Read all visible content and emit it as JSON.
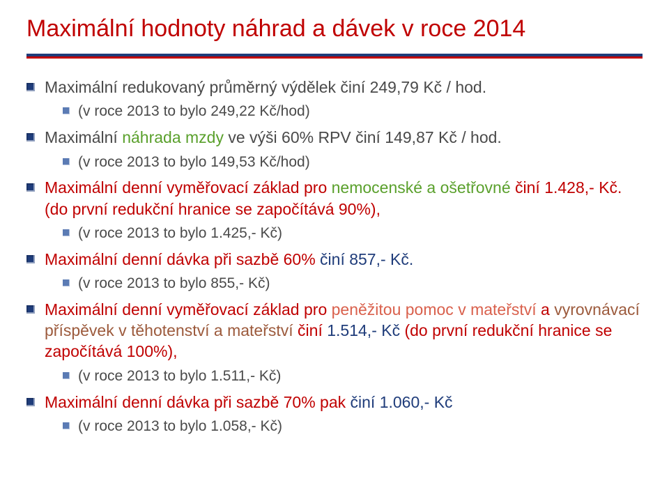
{
  "title": "Maximální hodnoty náhrad a dávek v roce 2014",
  "colors": {
    "title": "#c00000",
    "divider_top": "#1f3c7a",
    "divider_bottom": "#c00000",
    "bullet1": "#1f3c7a",
    "bullet2": "#5b7bb4",
    "text": "#4a4a4a",
    "green": "#5aa02c",
    "red": "#c00000",
    "blue": "#1f3c7a",
    "lightred": "#d9604c",
    "brown": "#9c5a3c",
    "background": "#ffffff"
  },
  "b1": {
    "l1": "Maximální redukovaný průměrný výdělek činí 249,79 Kč / hod.",
    "l2": "(v roce 2013 to bylo 249,22 Kč/hod)"
  },
  "b2": {
    "pre": "Maximální ",
    "hl": "náhrada mzdy",
    "post": " ve výši 60% RPV činí 149,87 Kč / hod.",
    "l2": "(v roce 2013 to bylo 149,53 Kč/hod)"
  },
  "b3": {
    "pre": "Maximální denní vyměřovací základ pro ",
    "hl": "nemocenské a ošetřovné",
    "post": " činí 1.428,- Kč. (do první redukční hranice se započítává 90%),",
    "l2": "(v roce 2013 to bylo 1.425,- Kč)"
  },
  "b4": {
    "pre": "Maximální denní dávka při sazbě 60% ",
    "hl": "činí 857,- Kč.",
    "l2": "(v roce 2013 to bylo 855,- Kč)"
  },
  "b5": {
    "pre": "Maximální denní vyměřovací základ pro ",
    "hl1": "peněžitou pomoc v mateřství",
    "mid": " a ",
    "hl2": "vyrovnávací příspěvek v těhotenství a mateřství",
    "post1": " činí ",
    "val": "1.514,- Kč",
    "post2": " (do první redukční hranice se započítává 100%),",
    "l2": "(v roce 2013 to bylo 1.511,- Kč)"
  },
  "b6": {
    "pre": "Maximální denní dávka při sazbě 70% pak ",
    "hl": "činí 1.060,- Kč",
    "l2": "(v roce 2013 to bylo 1.058,- Kč)"
  }
}
